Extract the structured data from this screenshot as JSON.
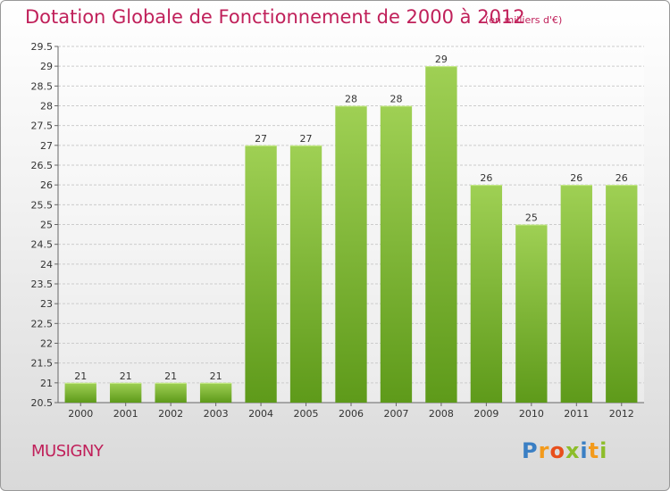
{
  "header": {
    "title": "Dotation Globale de Fonctionnement de 2000 à 2012",
    "unit": "(en milliers d'€)"
  },
  "footer": {
    "commune": "MUSIGNY",
    "logo": [
      "P",
      "r",
      "o",
      "x",
      "i",
      "t",
      "i"
    ]
  },
  "colors": {
    "title": "#c0205a",
    "bar_light": "#9fd054",
    "bar_dark": "#5e9a1a",
    "grid": "#cccccc",
    "logo": [
      "#3a7fc4",
      "#f39a1b",
      "#e84f1c",
      "#8dbd2a",
      "#3a7fc4",
      "#f39a1b",
      "#8dbd2a"
    ]
  },
  "chart_data": {
    "type": "bar",
    "categories": [
      "2000",
      "2001",
      "2002",
      "2003",
      "2004",
      "2005",
      "2006",
      "2007",
      "2008",
      "2009",
      "2010",
      "2011",
      "2012"
    ],
    "values": [
      21,
      21,
      21,
      21,
      27,
      27,
      28,
      28,
      29,
      26,
      25,
      26,
      26
    ],
    "title": "Dotation Globale de Fonctionnement de 2000 à 2012",
    "subtitle": "(en milliers d'€)",
    "ylim": [
      20.5,
      29.5
    ],
    "yticks": [
      20.5,
      21,
      21.5,
      22,
      22.5,
      23,
      23.5,
      24,
      24.5,
      25,
      25.5,
      26,
      26.5,
      27,
      27.5,
      28,
      28.5,
      29,
      29.5
    ],
    "grid": true,
    "data_labels": true
  }
}
